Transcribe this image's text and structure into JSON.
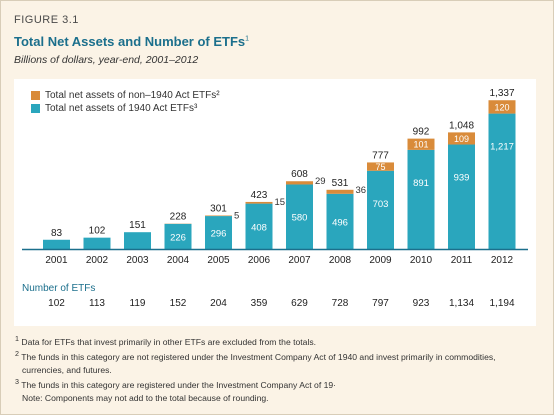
{
  "figure_label": "FIGURE 3.1",
  "title": "Total Net Assets and Number of ETFs",
  "title_sup": "1",
  "subtitle": "Billions of dollars, year-end, 2001–2012",
  "colors": {
    "non1940": "#d98b3a",
    "act1940": "#2aa6bd",
    "axis": "#1b6f8c"
  },
  "chart_data": {
    "type": "bar",
    "stacked": true,
    "categories": [
      "2001",
      "2002",
      "2003",
      "2004",
      "2005",
      "2006",
      "2007",
      "2008",
      "2009",
      "2010",
      "2011",
      "2012"
    ],
    "series": [
      {
        "name": "Total net assets of 1940 Act ETFs³",
        "values": [
          83,
          102,
          151,
          226,
          296,
          408,
          580,
          496,
          703,
          891,
          939,
          1217
        ]
      },
      {
        "name": "Total net assets of non–1940 Act ETFs²",
        "values": [
          0,
          0,
          0,
          2,
          5,
          15,
          29,
          36,
          75,
          101,
          109,
          120
        ]
      }
    ],
    "inner_labels_1940": [
      "",
      "",
      "",
      "226",
      "296",
      "408",
      "580",
      "496",
      "703",
      "891",
      "939",
      "1,217"
    ],
    "inner_labels_non1940": [
      "",
      "",
      "",
      "",
      "",
      "",
      "",
      "",
      "75",
      "101",
      "109",
      "120"
    ],
    "side_labels_non1940": [
      "",
      "",
      "",
      "",
      "5",
      "15",
      "29",
      "36",
      "",
      "",
      "",
      ""
    ],
    "totals": [
      "83",
      "102",
      "151",
      "228",
      "301",
      "423",
      "608",
      "531",
      "777",
      "992",
      "1,048",
      "1,337"
    ],
    "ylim": [
      0,
      1420
    ]
  },
  "count_header": "Number of ETFs",
  "counts": [
    "102",
    "113",
    "119",
    "152",
    "204",
    "359",
    "629",
    "728",
    "797",
    "923",
    "1,134",
    "1,194"
  ],
  "footnotes": [
    {
      "sup": "1",
      "text": "Data for ETFs that invest primarily in other ETFs are excluded from the totals."
    },
    {
      "sup": "2",
      "text": "The funds in this category are not registered under the Investment Company Act of 1940 and invest primarily in commodities,"
    },
    {
      "sup": "",
      "text": "currencies, and futures."
    },
    {
      "sup": "3",
      "text": "The funds in this category are registered under the Investment Company Act of 19·"
    },
    {
      "sup": "",
      "text": "Note: Components may not add to the total because of rounding."
    }
  ]
}
